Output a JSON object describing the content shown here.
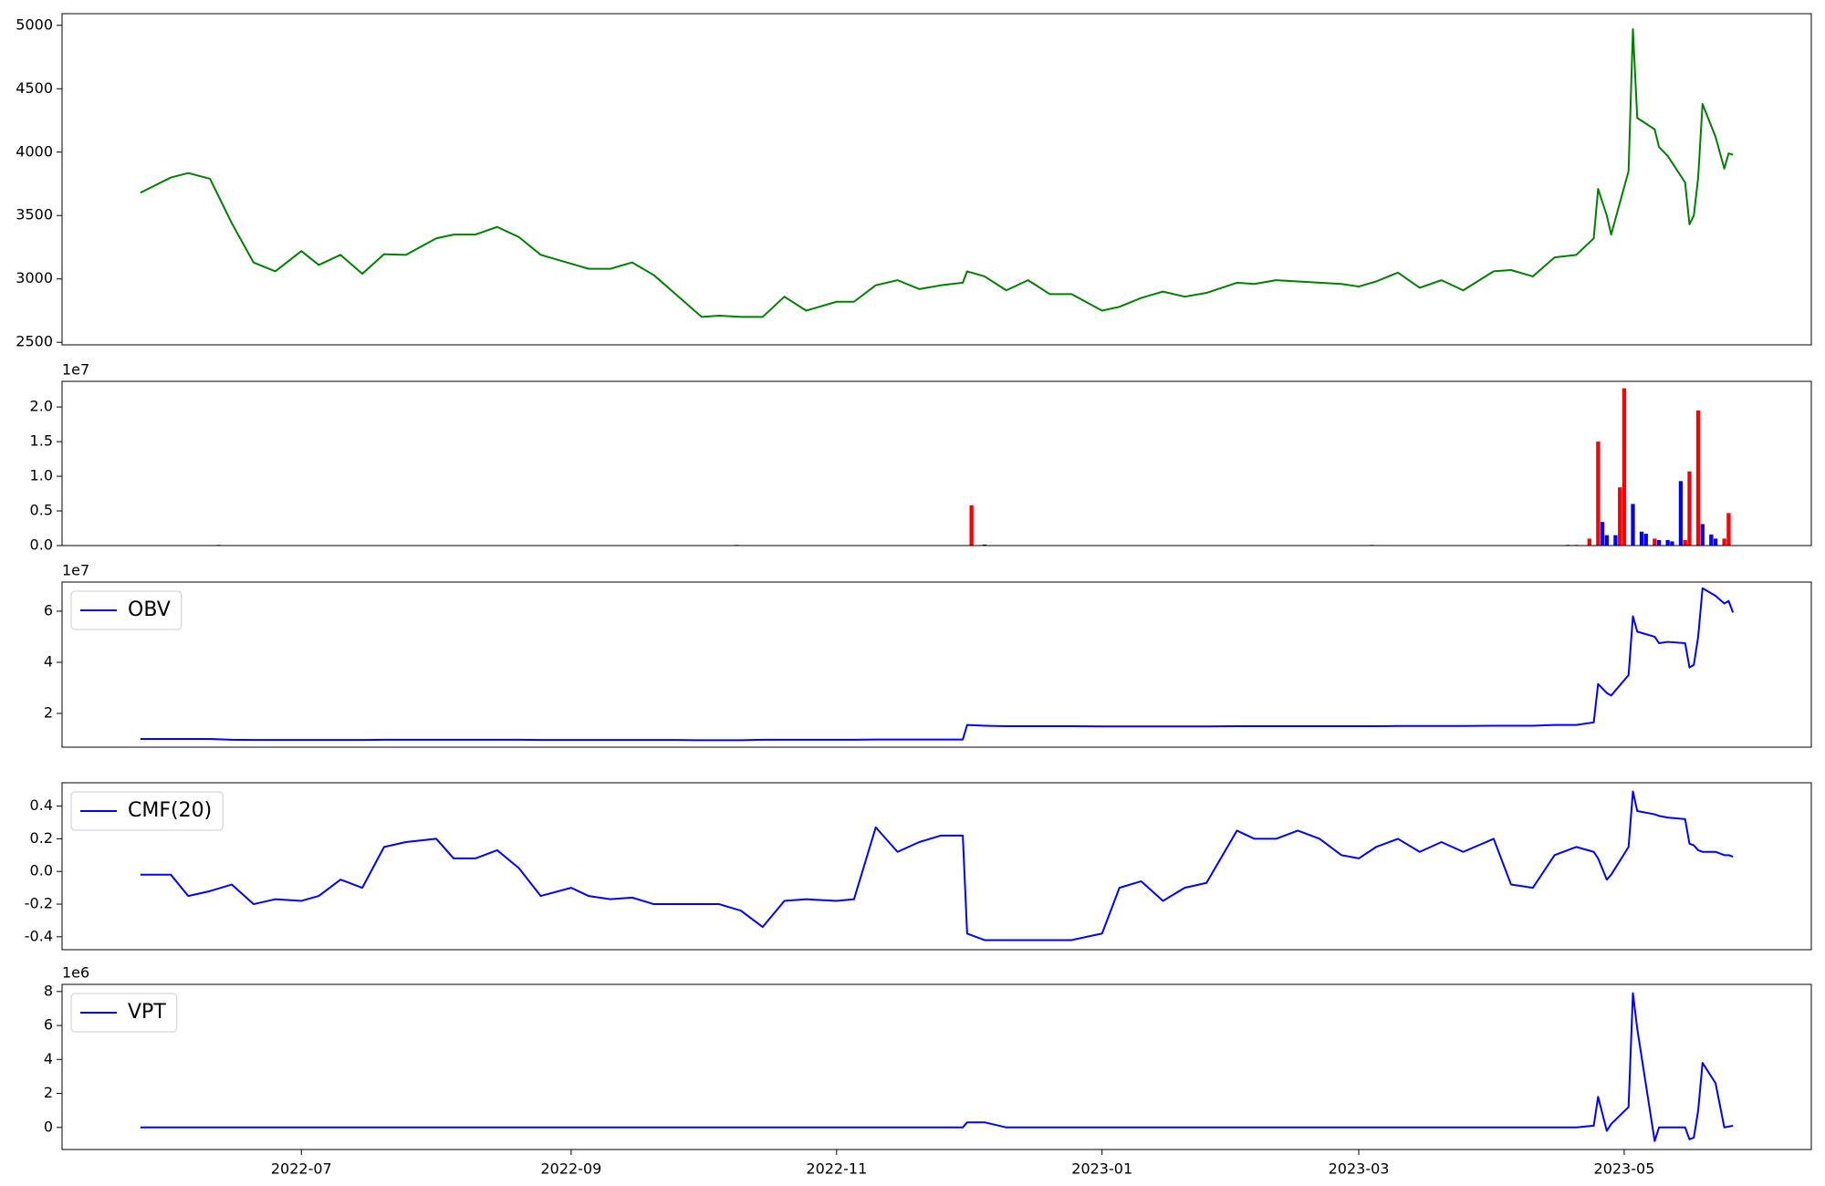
{
  "chart_data": {
    "type": "stacked-panels",
    "x": [
      "2022-05-25",
      "2022-06-01",
      "2022-06-05",
      "2022-06-10",
      "2022-06-15",
      "2022-06-20",
      "2022-06-25",
      "2022-07-01",
      "2022-07-05",
      "2022-07-10",
      "2022-07-15",
      "2022-07-20",
      "2022-07-25",
      "2022-08-01",
      "2022-08-05",
      "2022-08-10",
      "2022-08-15",
      "2022-08-20",
      "2022-08-25",
      "2022-09-01",
      "2022-09-05",
      "2022-09-10",
      "2022-09-15",
      "2022-09-20",
      "2022-09-25",
      "2022-10-01",
      "2022-10-05",
      "2022-10-10",
      "2022-10-15",
      "2022-10-20",
      "2022-10-25",
      "2022-11-01",
      "2022-11-05",
      "2022-11-10",
      "2022-11-15",
      "2022-11-20",
      "2022-11-25",
      "2022-11-30",
      "2022-12-01",
      "2022-12-05",
      "2022-12-10",
      "2022-12-15",
      "2022-12-20",
      "2022-12-25",
      "2023-01-01",
      "2023-01-05",
      "2023-01-10",
      "2023-01-15",
      "2023-01-20",
      "2023-01-25",
      "2023-02-01",
      "2023-02-05",
      "2023-02-10",
      "2023-02-15",
      "2023-02-20",
      "2023-02-25",
      "2023-03-01",
      "2023-03-05",
      "2023-03-10",
      "2023-03-15",
      "2023-03-20",
      "2023-03-25",
      "2023-04-01",
      "2023-04-05",
      "2023-04-10",
      "2023-04-15",
      "2023-04-20",
      "2023-04-24",
      "2023-04-25",
      "2023-04-27",
      "2023-04-28",
      "2023-05-02",
      "2023-05-03",
      "2023-05-04",
      "2023-05-08",
      "2023-05-09",
      "2023-05-11",
      "2023-05-15",
      "2023-05-16",
      "2023-05-17",
      "2023-05-18",
      "2023-05-19",
      "2023-05-22",
      "2023-05-24",
      "2023-05-25",
      "2023-05-26"
    ],
    "xlim": [
      "2022-05-07",
      "2023-06-13"
    ],
    "xticks": [
      {
        "value": "2022-07-01",
        "label": "2022-07"
      },
      {
        "value": "2022-09-01",
        "label": "2022-09"
      },
      {
        "value": "2022-11-01",
        "label": "2022-11"
      },
      {
        "value": "2023-01-01",
        "label": "2023-01"
      },
      {
        "value": "2023-03-01",
        "label": "2023-03"
      },
      {
        "value": "2023-05-01",
        "label": "2023-05"
      }
    ],
    "panels": [
      {
        "type": "line",
        "color": "#008000",
        "values": [
          3680,
          3800,
          3835,
          3790,
          3440,
          3130,
          3060,
          3220,
          3110,
          3190,
          3040,
          3195,
          3190,
          3320,
          3350,
          3350,
          3410,
          3330,
          3190,
          3120,
          3080,
          3080,
          3130,
          3030,
          2880,
          2700,
          2710,
          2700,
          2700,
          2860,
          2750,
          2820,
          2820,
          2950,
          2990,
          2920,
          2950,
          2970,
          3060,
          3020,
          2910,
          2990,
          2880,
          2880,
          2750,
          2780,
          2850,
          2900,
          2860,
          2890,
          2970,
          2960,
          2990,
          2980,
          2970,
          2960,
          2940,
          2980,
          3050,
          2930,
          2990,
          2910,
          3060,
          3070,
          3020,
          3170,
          3190,
          3320,
          3710,
          3500,
          3350,
          3850,
          4970,
          4270,
          4180,
          4040,
          3970,
          3760,
          3430,
          3500,
          3800,
          4380,
          4120,
          3870,
          3990,
          3980
        ],
        "ylim": [
          2480,
          5092
        ],
        "yticks": [
          2500,
          3000,
          3500,
          4000,
          4500,
          5000
        ]
      },
      {
        "type": "bar",
        "offset_label": "1e7",
        "x": [
          "2022-06-12",
          "2022-10-09",
          "2022-12-02",
          "2022-12-05",
          "2023-03-04",
          "2023-04-18",
          "2023-04-20",
          "2023-04-23",
          "2023-04-25",
          "2023-04-26",
          "2023-04-27",
          "2023-04-29",
          "2023-04-30",
          "2023-05-01",
          "2023-05-03",
          "2023-05-05",
          "2023-05-06",
          "2023-05-08",
          "2023-05-09",
          "2023-05-11",
          "2023-05-12",
          "2023-05-14",
          "2023-05-15",
          "2023-05-16",
          "2023-05-18",
          "2023-05-19",
          "2023-05-21",
          "2023-05-22",
          "2023-05-24",
          "2023-05-25"
        ],
        "values": [
          100000,
          100000,
          5800000,
          150000,
          100000,
          100000,
          100000,
          1000000,
          15000000,
          3400000,
          1500000,
          1500000,
          8400000,
          22700000,
          6000000,
          2000000,
          1700000,
          1000000,
          800000,
          800000,
          600000,
          9300000,
          800000,
          10700000,
          19500000,
          3100000,
          1600000,
          1000000,
          1000000,
          4700000
        ],
        "colors": [
          "#ff0000",
          "#ff0000",
          "#ff0000",
          "#0000ff",
          "#ff0000",
          "#0000ff",
          "#ff0000",
          "#ff0000",
          "#ff0000",
          "#0000ff",
          "#0000ff",
          "#0000ff",
          "#ff0000",
          "#ff0000",
          "#0000ff",
          "#0000ff",
          "#0000ff",
          "#ff0000",
          "#0000ff",
          "#0000ff",
          "#0000ff",
          "#0000ff",
          "#ff0000",
          "#ff0000",
          "#ff0000",
          "#0000ff",
          "#0000ff",
          "#0000ff",
          "#ff0000",
          "#ff0000"
        ],
        "ylim": [
          0,
          23700000
        ],
        "yticks": [
          {
            "value": 0,
            "label": "0.0"
          },
          {
            "value": 5000000,
            "label": "0.5"
          },
          {
            "value": 10000000,
            "label": "1.0"
          },
          {
            "value": 15000000,
            "label": "1.5"
          },
          {
            "value": 20000000,
            "label": "2.0"
          }
        ]
      },
      {
        "type": "line",
        "offset_label": "1e7",
        "legend": "upper left",
        "series": [
          {
            "name": "OBV",
            "color": "#0000ff",
            "values": [
              10000000,
              10000000,
              10000000,
              10000000,
              9700000,
              9600000,
              9600000,
              9600000,
              9600000,
              9600000,
              9600000,
              9700000,
              9700000,
              9700000,
              9700000,
              9700000,
              9700000,
              9700000,
              9600000,
              9600000,
              9600000,
              9600000,
              9600000,
              9600000,
              9600000,
              9500000,
              9500000,
              9500000,
              9700000,
              9700000,
              9700000,
              9700000,
              9700000,
              9800000,
              9800000,
              9800000,
              9800000,
              9800000,
              15500000,
              15200000,
              15000000,
              15000000,
              15000000,
              15000000,
              14900000,
              14900000,
              14900000,
              14900000,
              14900000,
              14900000,
              15000000,
              15000000,
              15000000,
              15000000,
              15000000,
              15000000,
              15000000,
              15000000,
              15100000,
              15100000,
              15100000,
              15100000,
              15200000,
              15200000,
              15200000,
              15500000,
              15500000,
              16500000,
              31500000,
              28000000,
              27000000,
              35000000,
              58000000,
              52000000,
              50000000,
              47500000,
              48000000,
              47500000,
              38000000,
              39000000,
              50000000,
              69000000,
              66000000,
              63000000,
              64000000,
              59500000
            ]
          }
        ],
        "ylim": [
          6800000,
          71400000
        ],
        "yticks": [
          {
            "value": 20000000,
            "label": "2"
          },
          {
            "value": 40000000,
            "label": "4"
          },
          {
            "value": 60000000,
            "label": "6"
          }
        ]
      },
      {
        "type": "line",
        "legend": "upper left",
        "series": [
          {
            "name": "CMF(20)",
            "color": "#0000ff",
            "values": [
              -0.02,
              -0.02,
              -0.15,
              -0.12,
              -0.08,
              -0.2,
              -0.17,
              -0.18,
              -0.15,
              -0.05,
              -0.1,
              0.15,
              0.18,
              0.2,
              0.08,
              0.08,
              0.13,
              0.02,
              -0.15,
              -0.1,
              -0.15,
              -0.17,
              -0.16,
              -0.2,
              -0.2,
              -0.2,
              -0.2,
              -0.24,
              -0.34,
              -0.18,
              -0.17,
              -0.18,
              -0.17,
              0.27,
              0.12,
              0.18,
              0.22,
              0.22,
              -0.38,
              -0.42,
              -0.42,
              -0.42,
              -0.42,
              -0.42,
              -0.38,
              -0.1,
              -0.06,
              -0.18,
              -0.1,
              -0.07,
              0.25,
              0.2,
              0.2,
              0.25,
              0.2,
              0.1,
              0.08,
              0.15,
              0.2,
              0.12,
              0.18,
              0.12,
              0.2,
              -0.08,
              -0.1,
              0.1,
              0.15,
              0.12,
              0.08,
              -0.05,
              -0.02,
              0.15,
              0.49,
              0.37,
              0.35,
              0.34,
              0.33,
              0.32,
              0.17,
              0.16,
              0.13,
              0.12,
              0.12,
              0.1,
              0.1,
              0.09
            ]
          }
        ],
        "ylim": [
          -0.479,
          0.543
        ],
        "yticks": [
          -0.4,
          -0.2,
          {
            "value": 0,
            "label": "0.0"
          },
          0.2,
          0.4
        ]
      },
      {
        "type": "line",
        "offset_label": "1e6",
        "legend": "upper left",
        "series": [
          {
            "name": "VPT",
            "color": "#0000ff",
            "values": [
              0,
              0,
              0,
              0,
              0,
              0,
              0,
              0,
              0,
              0,
              0,
              0,
              0,
              0,
              0,
              0,
              0,
              0,
              0,
              0,
              0,
              0,
              0,
              0,
              0,
              0,
              0,
              0,
              0,
              0,
              0,
              0,
              0,
              0,
              0,
              0,
              0,
              0,
              300000,
              300000,
              0,
              0,
              0,
              0,
              0,
              0,
              0,
              0,
              0,
              0,
              0,
              0,
              0,
              0,
              0,
              0,
              0,
              0,
              0,
              0,
              0,
              0,
              0,
              0,
              0,
              0,
              0,
              100000,
              1800000,
              -200000,
              200000,
              1200000,
              7900000,
              5800000,
              -800000,
              0,
              0,
              0,
              -700000,
              -600000,
              1000000,
              3800000,
              2600000,
              0,
              50000,
              100000
            ]
          }
        ],
        "ylim": [
          -1300000,
          8420000
        ],
        "yticks": [
          0,
          {
            "value": 2000000,
            "label": "2"
          },
          {
            "value": 4000000,
            "label": "4"
          },
          {
            "value": 6000000,
            "label": "6"
          },
          {
            "value": 8000000,
            "label": "8"
          }
        ]
      }
    ]
  }
}
